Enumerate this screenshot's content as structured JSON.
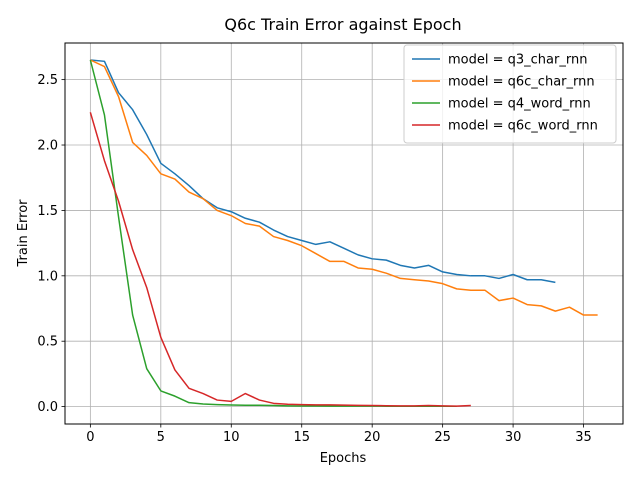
{
  "chart_data": {
    "type": "line",
    "title": "Q6c Train Error against Epoch",
    "xlabel": "Epochs",
    "ylabel": "Train Error",
    "xlim": [
      -1.8,
      37.8
    ],
    "ylim": [
      -0.133,
      2.78
    ],
    "xticks": [
      0,
      5,
      10,
      15,
      20,
      25,
      30,
      35
    ],
    "yticks": [
      0.0,
      0.5,
      1.0,
      1.5,
      2.0,
      2.5
    ],
    "ytick_labels": [
      "0.0",
      "0.5",
      "1.0",
      "1.5",
      "2.0",
      "2.5"
    ],
    "grid": true,
    "legend_position": "top-right",
    "series": [
      {
        "name": "model = q3_char_rnn",
        "color": "#1f77b4",
        "x": [
          0,
          1,
          2,
          3,
          4,
          5,
          6,
          7,
          8,
          9,
          10,
          11,
          12,
          13,
          14,
          15,
          16,
          17,
          18,
          19,
          20,
          21,
          22,
          23,
          24,
          25,
          26,
          27,
          28,
          29,
          30,
          31,
          32,
          33
        ],
        "y": [
          2.65,
          2.64,
          2.4,
          2.27,
          2.08,
          1.86,
          1.78,
          1.69,
          1.59,
          1.52,
          1.49,
          1.44,
          1.41,
          1.35,
          1.3,
          1.27,
          1.24,
          1.26,
          1.21,
          1.16,
          1.13,
          1.12,
          1.08,
          1.06,
          1.08,
          1.03,
          1.01,
          1.0,
          1.0,
          0.98,
          1.01,
          0.97,
          0.97,
          0.95
        ]
      },
      {
        "name": "model = q6c_char_rnn",
        "color": "#ff7f0e",
        "x": [
          0,
          1,
          2,
          3,
          4,
          5,
          6,
          7,
          8,
          9,
          10,
          11,
          12,
          13,
          14,
          15,
          16,
          17,
          18,
          19,
          20,
          21,
          22,
          23,
          24,
          25,
          26,
          27,
          28,
          29,
          30,
          31,
          32,
          33,
          34,
          35,
          36
        ],
        "y": [
          2.65,
          2.6,
          2.37,
          2.02,
          1.92,
          1.78,
          1.74,
          1.64,
          1.59,
          1.5,
          1.46,
          1.4,
          1.38,
          1.3,
          1.27,
          1.23,
          1.17,
          1.11,
          1.11,
          1.06,
          1.05,
          1.02,
          0.98,
          0.97,
          0.96,
          0.94,
          0.9,
          0.89,
          0.89,
          0.81,
          0.83,
          0.78,
          0.77,
          0.73,
          0.76,
          0.7,
          0.7
        ]
      },
      {
        "name": "model = q4_word_rnn",
        "color": "#2ca02c",
        "x": [
          0,
          1,
          2,
          3,
          4,
          5,
          6,
          7,
          8,
          9,
          10,
          11,
          12,
          13,
          14,
          15,
          16,
          17,
          18,
          19,
          20,
          21,
          22,
          23,
          24,
          25,
          26
        ],
        "y": [
          2.65,
          2.23,
          1.45,
          0.7,
          0.29,
          0.12,
          0.08,
          0.03,
          0.02,
          0.015,
          0.012,
          0.01,
          0.01,
          0.008,
          0.006,
          0.005,
          0.005,
          0.004,
          0.004,
          0.004,
          0.004,
          0.003,
          0.003,
          0.003,
          0.003,
          0.003,
          0.003
        ]
      },
      {
        "name": "model = q6c_word_rnn",
        "color": "#d62728",
        "x": [
          0,
          1,
          2,
          3,
          4,
          5,
          6,
          7,
          8,
          9,
          10,
          11,
          12,
          13,
          14,
          15,
          16,
          17,
          18,
          19,
          20,
          21,
          22,
          23,
          24,
          25,
          26,
          27
        ],
        "y": [
          2.25,
          1.88,
          1.57,
          1.2,
          0.91,
          0.53,
          0.28,
          0.14,
          0.1,
          0.05,
          0.04,
          0.1,
          0.05,
          0.025,
          0.018,
          0.015,
          0.013,
          0.013,
          0.011,
          0.009,
          0.008,
          0.007,
          0.006,
          0.006,
          0.008,
          0.006,
          0.004,
          0.008
        ]
      }
    ]
  }
}
